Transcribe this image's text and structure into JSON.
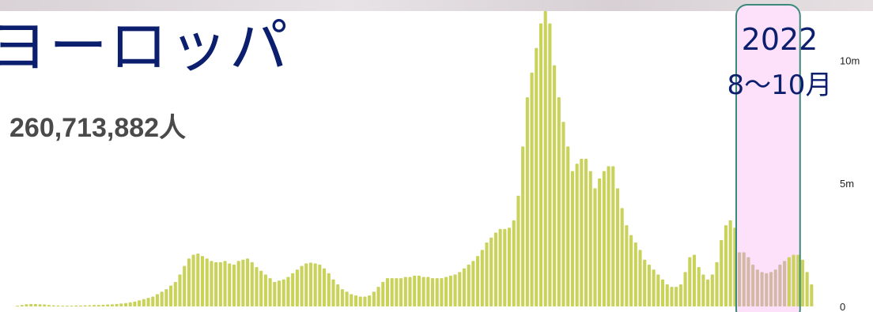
{
  "region_label": "ヨーロッパ",
  "total_cases": "260,713,882人",
  "annotation": {
    "year": "2022",
    "months": "8〜10月"
  },
  "colors": {
    "bar": "#c9d25a",
    "bar_highlighted": "#d4b8a6",
    "highlight_fill": "#fde0fa",
    "highlight_stroke": "#3a8a7a",
    "title": "#0c1f6e"
  },
  "chart_data": {
    "type": "bar",
    "ylim": [
      0,
      12000000
    ],
    "y_ticks": [
      {
        "value": 0,
        "label": "0"
      },
      {
        "value": 5000000,
        "label": "5m"
      },
      {
        "value": 10000000,
        "label": "10m"
      }
    ],
    "highlight": {
      "from_index": 160,
      "to_index": 170,
      "label_year": "2022",
      "label_months": "8〜10月"
    },
    "values": [
      30000,
      60000,
      90000,
      100000,
      100000,
      90000,
      80000,
      60000,
      50000,
      40000,
      30000,
      30000,
      30000,
      40000,
      40000,
      50000,
      50000,
      60000,
      60000,
      70000,
      80000,
      90000,
      100000,
      120000,
      140000,
      170000,
      200000,
      250000,
      300000,
      350000,
      400000,
      500000,
      600000,
      700000,
      850000,
      1000000,
      1300000,
      1650000,
      1950000,
      2100000,
      2150000,
      2050000,
      1950000,
      1850000,
      1800000,
      1800000,
      1850000,
      1750000,
      1700000,
      1850000,
      1900000,
      1950000,
      1800000,
      1600000,
      1450000,
      1300000,
      1150000,
      1000000,
      1050000,
      1100000,
      1200000,
      1350000,
      1500000,
      1650000,
      1750000,
      1780000,
      1750000,
      1700000,
      1550000,
      1350000,
      1100000,
      900000,
      700000,
      600000,
      500000,
      450000,
      400000,
      400000,
      450000,
      600000,
      800000,
      1000000,
      1150000,
      1150000,
      1150000,
      1150000,
      1200000,
      1200000,
      1250000,
      1250000,
      1200000,
      1200000,
      1150000,
      1150000,
      1150000,
      1200000,
      1250000,
      1300000,
      1400000,
      1550000,
      1700000,
      1850000,
      2050000,
      2300000,
      2600000,
      2800000,
      3000000,
      3150000,
      3150000,
      3200000,
      3500000,
      4500000,
      6500000,
      8500000,
      9500000,
      10500000,
      11500000,
      12000000,
      11500000,
      9800000,
      8500000,
      7500000,
      6500000,
      5500000,
      5800000,
      6000000,
      6000000,
      5500000,
      4800000,
      5200000,
      5500000,
      5700000,
      5700000,
      4800000,
      4000000,
      3300000,
      2900000,
      2600000,
      2300000,
      1900000,
      1700000,
      1500000,
      1300000,
      1100000,
      900000,
      800000,
      800000,
      900000,
      1400000,
      2000000,
      2100000,
      1600000,
      1300000,
      1100000,
      1300000,
      1800000,
      2700000,
      3300000,
      3500000,
      3200000,
      2200000,
      2200000,
      2000000,
      1700000,
      1500000,
      1400000,
      1350000,
      1400000,
      1500000,
      1700000,
      1850000,
      2000000,
      2100000,
      2100000,
      1900000,
      1400000,
      900000
    ]
  }
}
